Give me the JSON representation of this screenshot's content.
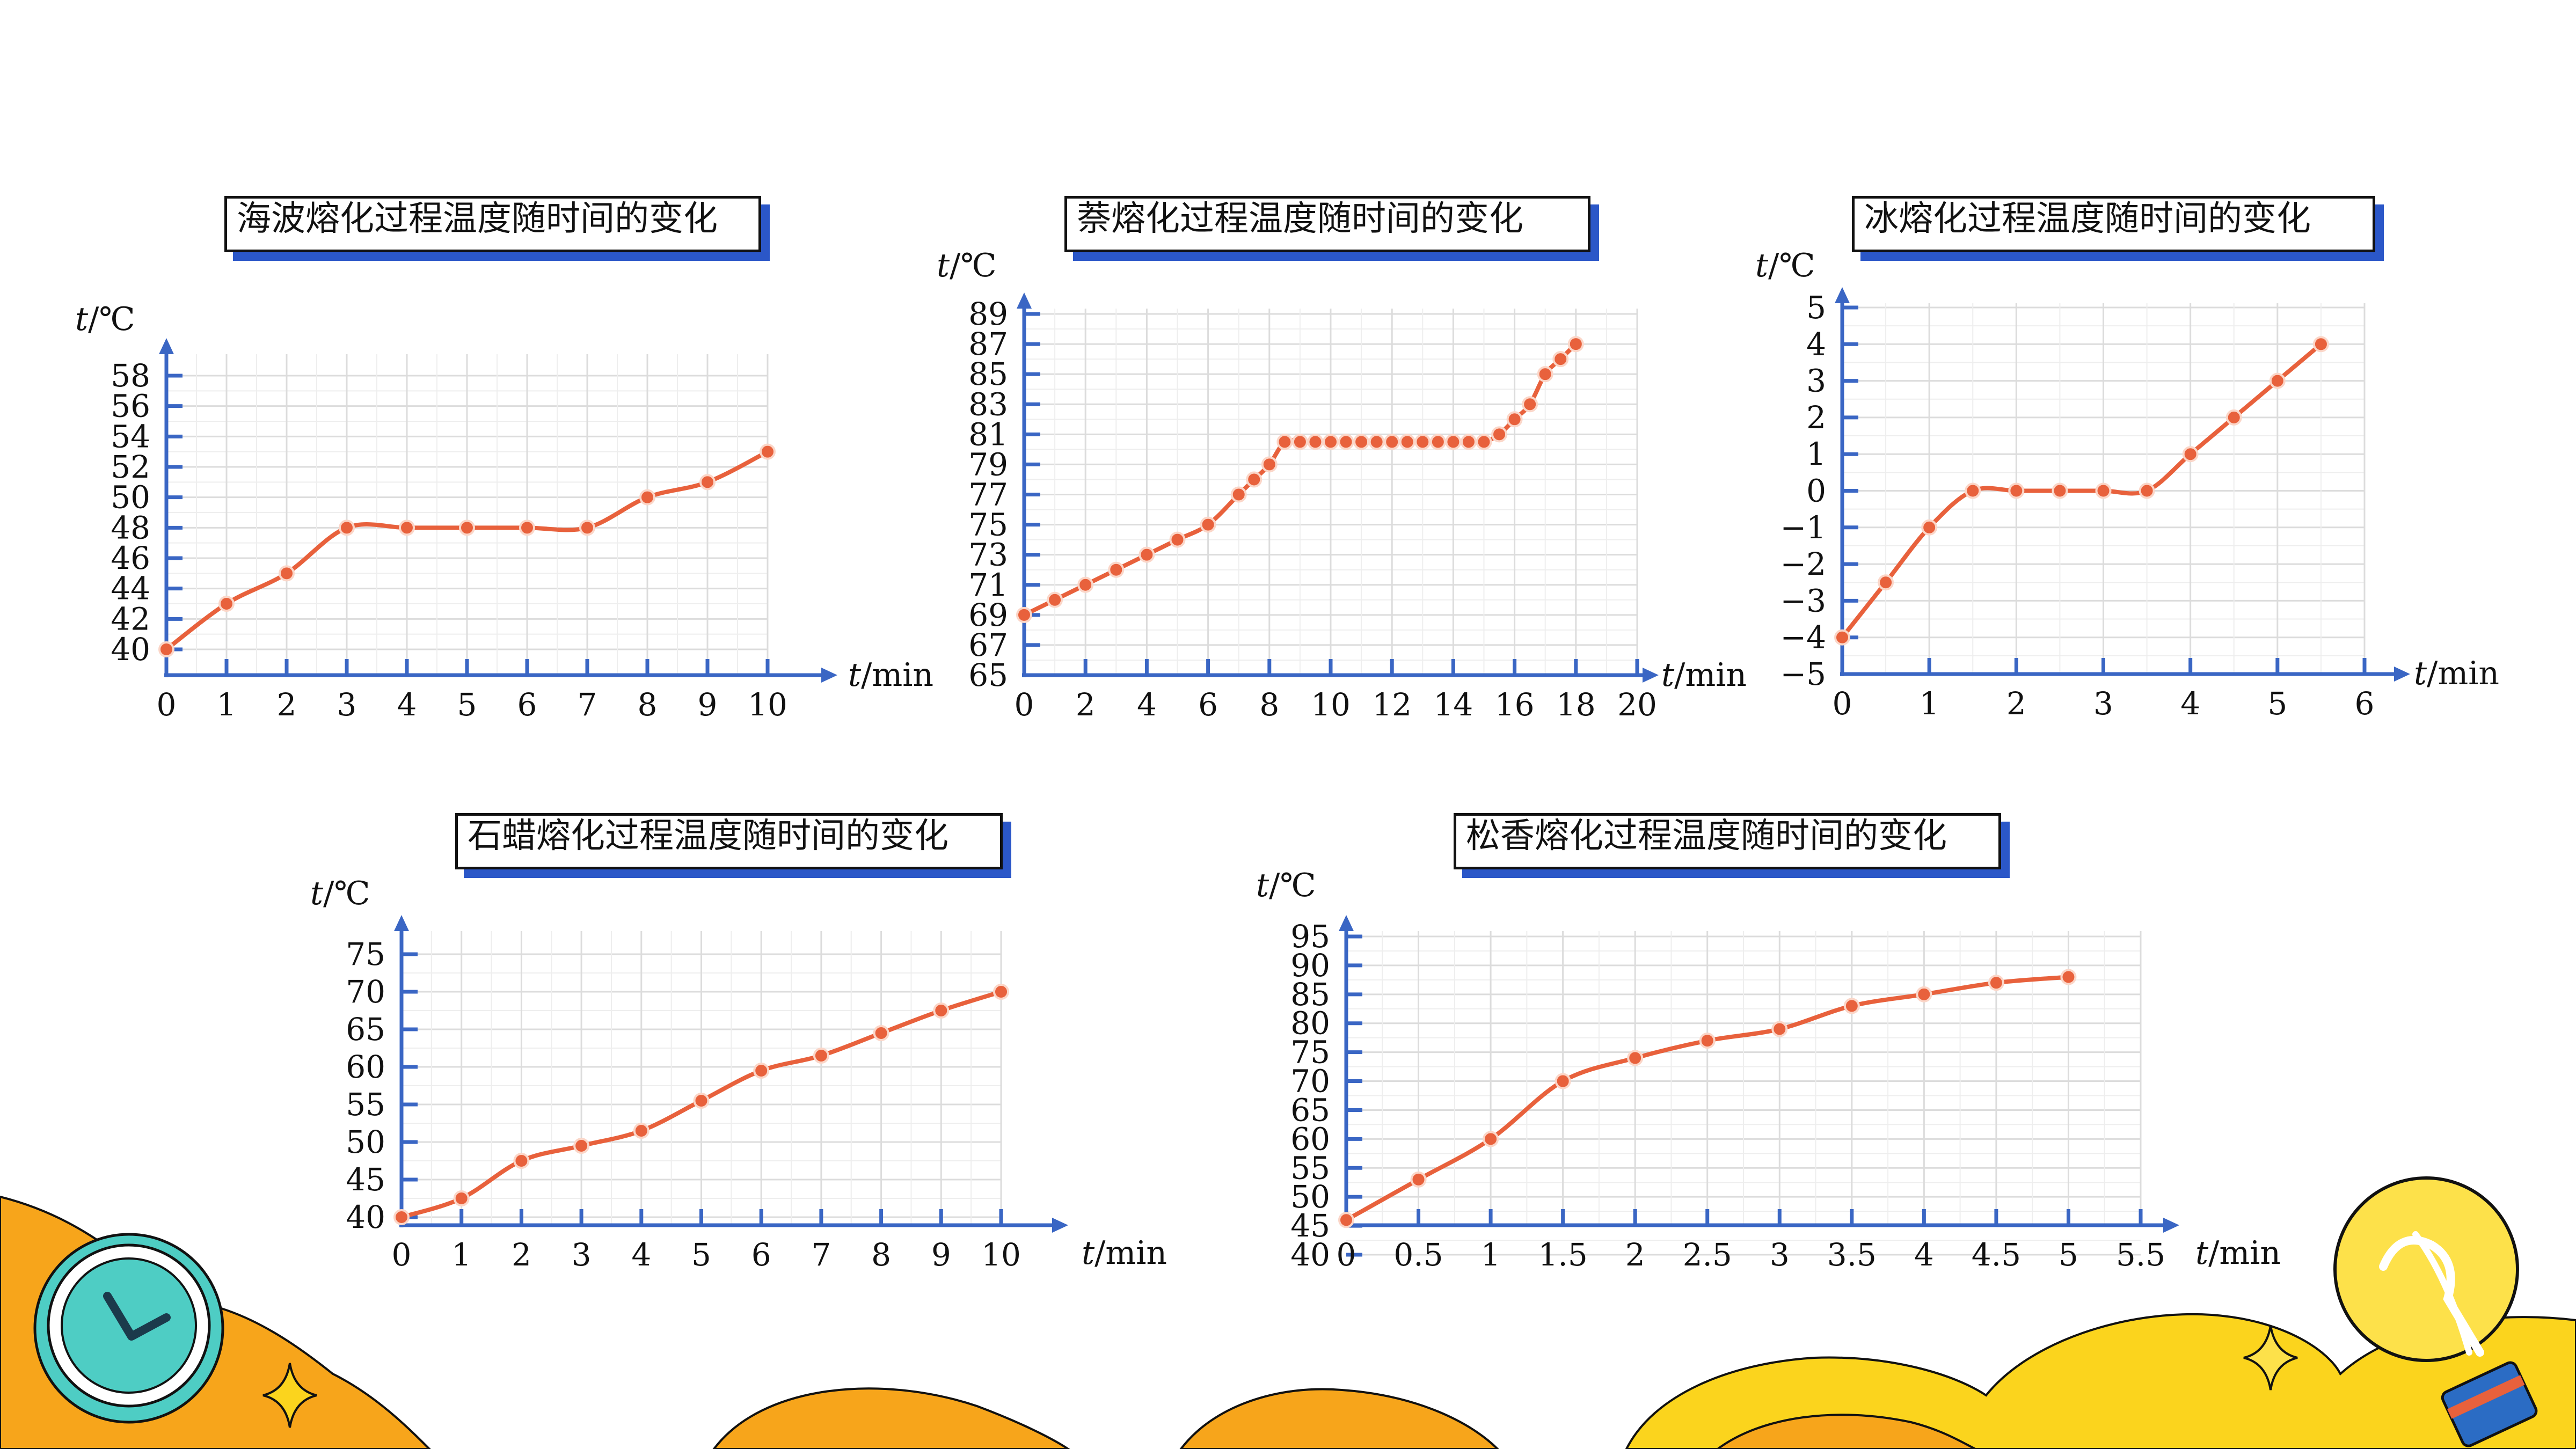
{
  "chart_data": [
    {
      "type": "line",
      "title": "海波熔化过程温度随时间的变化",
      "xlabel": "min",
      "ylabel": "℃",
      "axis_var": "t",
      "xticks": [
        0,
        1,
        2,
        3,
        4,
        5,
        6,
        7,
        8,
        9,
        10
      ],
      "yticks": [
        40,
        42,
        44,
        46,
        48,
        50,
        52,
        54,
        56,
        58
      ],
      "xlim": [
        0,
        10
      ],
      "ylim": [
        39,
        60
      ],
      "grid": true,
      "series": [
        {
          "x": [
            0,
            1,
            2,
            3,
            4,
            5,
            6,
            7,
            8,
            9,
            10
          ],
          "y": [
            40,
            43,
            45,
            48,
            48,
            48,
            48,
            48,
            50,
            51,
            53
          ]
        }
      ]
    },
    {
      "type": "line",
      "title": "萘熔化过程温度随时间的变化",
      "xlabel": "min",
      "ylabel": "℃",
      "axis_var": "t",
      "xticks": [
        0,
        2,
        4,
        6,
        8,
        10,
        12,
        14,
        16,
        18,
        20
      ],
      "yticks": [
        65,
        67,
        69,
        71,
        73,
        75,
        77,
        79,
        81,
        83,
        85,
        87,
        89
      ],
      "xlim": [
        0,
        20
      ],
      "ylim": [
        65,
        89
      ],
      "grid": true,
      "series": [
        {
          "x": [
            0,
            1,
            2,
            3,
            4,
            5,
            6,
            7,
            7.5,
            8,
            8.5,
            9,
            9.5,
            10,
            10.5,
            11,
            11.5,
            12,
            12.5,
            13,
            13.5,
            14,
            14.5,
            15,
            15.5,
            16,
            16.5,
            17,
            17.5,
            18
          ],
          "y": [
            69,
            70,
            71,
            72,
            73,
            74,
            75,
            77,
            78,
            79,
            80.5,
            80.5,
            80.5,
            80.5,
            80.5,
            80.5,
            80.5,
            80.5,
            80.5,
            80.5,
            80.5,
            80.5,
            80.5,
            80.5,
            81,
            82,
            83,
            85,
            86,
            87
          ]
        }
      ]
    },
    {
      "type": "line",
      "title": "冰熔化过程温度随时间的变化",
      "xlabel": "min",
      "ylabel": "℃",
      "axis_var": "t",
      "xticks": [
        0,
        1,
        2,
        3,
        4,
        5,
        6
      ],
      "yticks": [
        -5,
        -4,
        -3,
        -2,
        -1,
        0,
        1,
        2,
        3,
        4,
        5
      ],
      "xlim": [
        0,
        6
      ],
      "ylim": [
        -5,
        5
      ],
      "grid": true,
      "series": [
        {
          "x": [
            0,
            0.5,
            1,
            1.5,
            2,
            2.5,
            3,
            3.5,
            4,
            4.5,
            5,
            5.5
          ],
          "y": [
            -4,
            -2.5,
            -1,
            0,
            0,
            0,
            0,
            0,
            1,
            2,
            3,
            4
          ]
        }
      ]
    },
    {
      "type": "line",
      "title": "石蜡熔化过程温度随时间的变化",
      "xlabel": "min",
      "ylabel": "℃",
      "axis_var": "t",
      "xticks": [
        0,
        1,
        2,
        3,
        4,
        5,
        6,
        7,
        8,
        9,
        10
      ],
      "yticks": [
        40,
        45,
        50,
        55,
        60,
        65,
        70,
        75
      ],
      "xlim": [
        0,
        10
      ],
      "ylim": [
        40,
        75
      ],
      "grid": true,
      "series": [
        {
          "x": [
            0,
            1,
            2,
            3,
            4,
            5,
            6,
            7,
            8,
            9,
            10
          ],
          "y": [
            40,
            42.5,
            47.5,
            49.5,
            51.5,
            55.5,
            59.5,
            61.5,
            64.5,
            67.5,
            70
          ]
        }
      ]
    },
    {
      "type": "line",
      "title": "松香熔化过程温度随时间的变化",
      "xlabel": "min",
      "ylabel": "℃",
      "axis_var": "t",
      "xticks": [
        0,
        0.5,
        1,
        1.5,
        2,
        2.5,
        3,
        3.5,
        4,
        4.5,
        5,
        5.5
      ],
      "yticks": [
        40,
        45,
        50,
        55,
        60,
        65,
        70,
        75,
        80,
        85,
        90,
        95
      ],
      "xlim": [
        0,
        5.5
      ],
      "ylim": [
        40,
        95
      ],
      "grid": true,
      "series": [
        {
          "x": [
            0,
            0.5,
            1,
            1.5,
            2,
            2.5,
            3,
            3.5,
            4,
            4.5,
            5
          ],
          "y": [
            46,
            53,
            60,
            70,
            74,
            77,
            79,
            83,
            85,
            87,
            88
          ]
        }
      ]
    }
  ],
  "colors": {
    "line": "#e8613c",
    "marker": "#e8613c",
    "axis": "#3a66c4",
    "grid": "#dcdcdc",
    "shadow": "#2b57c8",
    "deco_orange": "#f7a51b",
    "deco_yellow": "#fbd41d",
    "clock_teal": "#4ecdc4",
    "bulb_yellow": "#fde14a"
  },
  "decorations": [
    "clock-icon",
    "lightbulb-icon",
    "sparkle-icon"
  ]
}
